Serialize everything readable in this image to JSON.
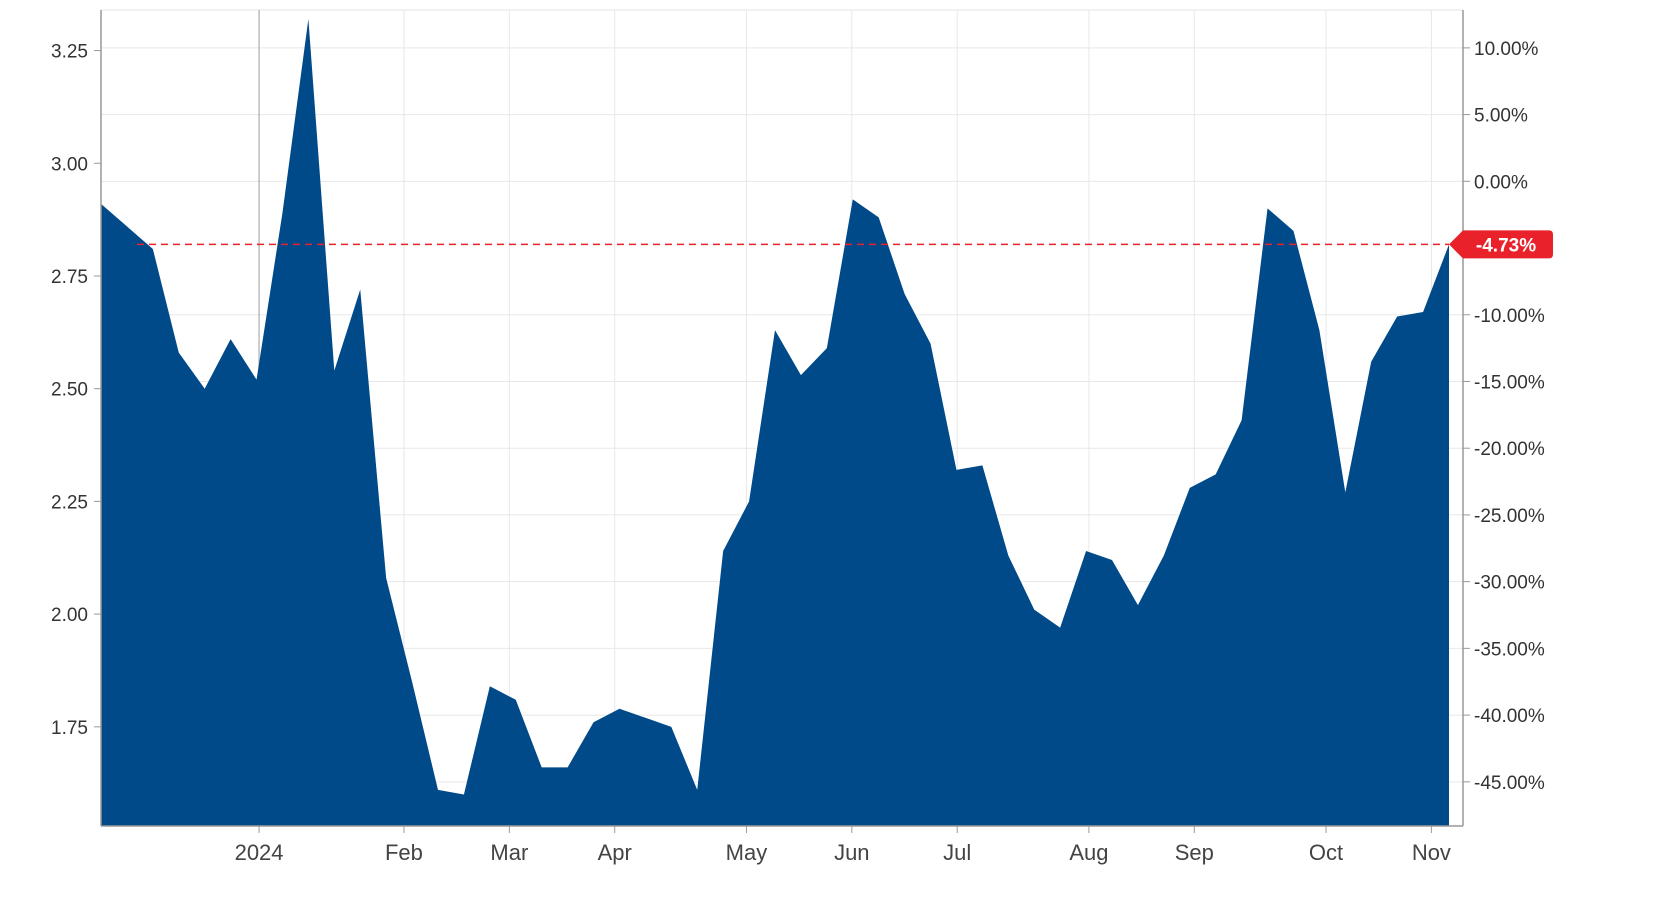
{
  "chart_data": {
    "type": "area",
    "title": "",
    "xlabel": "",
    "ylabel": "",
    "grid": true,
    "color": "#004a8a",
    "reference_color": "#e8212b",
    "x_ticks": [
      {
        "label": "2024",
        "t": 6.0
      },
      {
        "label": "Feb",
        "t": 11.5
      },
      {
        "label": "Mar",
        "t": 15.5
      },
      {
        "label": "Apr",
        "t": 19.5
      },
      {
        "label": "May",
        "t": 24.5
      },
      {
        "label": "Jun",
        "t": 28.5
      },
      {
        "label": "Jul",
        "t": 32.5
      },
      {
        "label": "Aug",
        "t": 37.5
      },
      {
        "label": "Sep",
        "t": 41.5
      },
      {
        "label": "Oct",
        "t": 46.5
      },
      {
        "label": "Nov",
        "t": 50.5
      }
    ],
    "x_range": [
      0,
      51.7
    ],
    "left_axis": {
      "min": 1.53,
      "max": 3.34,
      "ticks": [
        {
          "value": 1.75,
          "label": "1.75"
        },
        {
          "value": 2.0,
          "label": "2.00"
        },
        {
          "value": 2.25,
          "label": "2.25"
        },
        {
          "value": 2.5,
          "label": "2.50"
        },
        {
          "value": 2.75,
          "label": "2.75"
        },
        {
          "value": 3.0,
          "label": "3.00"
        },
        {
          "value": 3.25,
          "label": "3.25"
        }
      ]
    },
    "right_axis": {
      "ticks": [
        {
          "value": 10,
          "label": "10.00%"
        },
        {
          "value": 5,
          "label": "5.00%"
        },
        {
          "value": 0,
          "label": "0.00%"
        },
        {
          "value": -10,
          "label": "-10.00%"
        },
        {
          "value": -15,
          "label": "-15.00%"
        },
        {
          "value": -20,
          "label": "-20.00%"
        },
        {
          "value": -25,
          "label": "-25.00%"
        },
        {
          "value": -30,
          "label": "-30.00%"
        },
        {
          "value": -35,
          "label": "-35.00%"
        },
        {
          "value": -40,
          "label": "-40.00%"
        },
        {
          "value": -45,
          "label": "-45.00%"
        }
      ],
      "base_value": 2.96
    },
    "reference": {
      "value": 2.82,
      "label": "-4.73%"
    },
    "series": [
      {
        "values": [
          2.91,
          2.86,
          2.81,
          2.58,
          2.5,
          2.61,
          2.52,
          2.89,
          3.32,
          2.54,
          2.72,
          2.08,
          1.85,
          1.61,
          1.6,
          1.84,
          1.81,
          1.66,
          1.66,
          1.76,
          1.79,
          1.77,
          1.75,
          1.61,
          2.14,
          2.25,
          2.63,
          2.53,
          2.59,
          2.92,
          2.88,
          2.71,
          2.6,
          2.32,
          2.33,
          2.13,
          2.01,
          1.97,
          2.14,
          2.12,
          2.02,
          2.13,
          2.28,
          2.31,
          2.43,
          2.9,
          2.85,
          2.63,
          2.27,
          2.56,
          2.66,
          2.67,
          2.82
        ]
      }
    ]
  }
}
